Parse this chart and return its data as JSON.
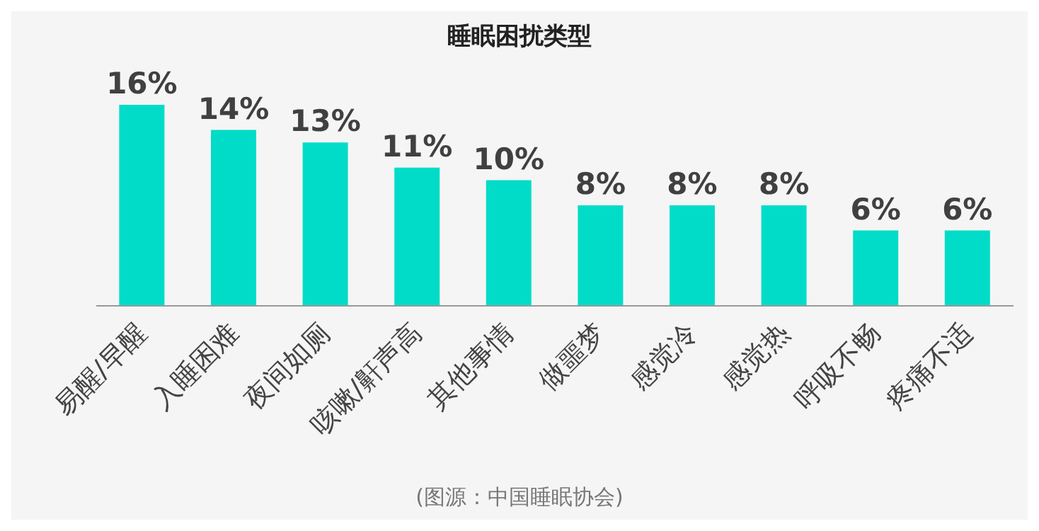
{
  "chart_data": {
    "type": "bar",
    "title": "睡眠困扰类型",
    "categories": [
      "易醒/早醒",
      "入睡困难",
      "夜间如厕",
      "咳嗽/鼾声高",
      "其他事情",
      "做噩梦",
      "感觉冷",
      "感觉热",
      "呼吸不畅",
      "疼痛不适"
    ],
    "values": [
      16,
      14,
      13,
      11,
      10,
      8,
      8,
      8,
      6,
      6
    ],
    "value_labels": [
      "16%",
      "14%",
      "13%",
      "11%",
      "10%",
      "8%",
      "8%",
      "8%",
      "6%",
      "6%"
    ],
    "color": "#00dcc8",
    "annotations": [
      "(图源：中国睡眠协会)"
    ],
    "grid": false,
    "legend": false
  }
}
